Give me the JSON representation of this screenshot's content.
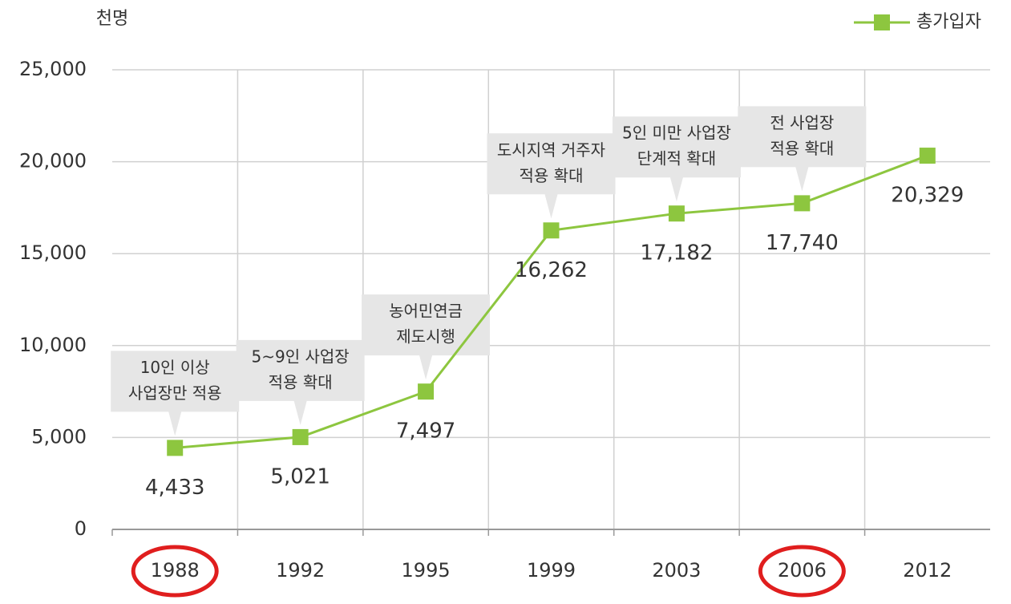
{
  "chart_data": {
    "type": "line",
    "y_unit": "천명",
    "categories": [
      "1988",
      "1992",
      "1995",
      "1999",
      "2003",
      "2006",
      "2012"
    ],
    "series": [
      {
        "name": "총가입자",
        "color": "#8dc63f",
        "values": [
          4433,
          5021,
          7497,
          16262,
          17182,
          17740,
          20329
        ],
        "value_labels": [
          "4,433",
          "5,021",
          "7,497",
          "16,262",
          "17,182",
          "17,740",
          "20,329"
        ]
      }
    ],
    "ylim": [
      0,
      25000
    ],
    "yticks": [
      0,
      {
        "value": 5000,
        "label": "5,000"
      },
      {
        "value": 10000,
        "label": "10,000"
      },
      {
        "value": 15000,
        "label": "15,000"
      },
      {
        "value": 20000,
        "label": "20,000"
      },
      {
        "value": 25000,
        "label": "25,000"
      }
    ],
    "grid": true,
    "legend": "top-right",
    "annotations": [
      {
        "category": 0,
        "text": [
          "10인 이상",
          "사업장만 적용"
        ]
      },
      {
        "category": 1,
        "text": [
          "5~9인 사업장",
          "적용 확대"
        ]
      },
      {
        "category": 2,
        "text": [
          "농어민연금",
          "제도시행"
        ]
      },
      {
        "category": 3,
        "text": [
          "도시지역 거주자",
          "적용 확대"
        ]
      },
      {
        "category": 4,
        "text": [
          "5인 미만 사업장",
          "단계적 확대"
        ]
      },
      {
        "category": 5,
        "text": [
          "전 사업장",
          "적용 확대"
        ]
      }
    ],
    "circled_categories": [
      0,
      5
    ],
    "circle_color": "#e01e1e"
  }
}
